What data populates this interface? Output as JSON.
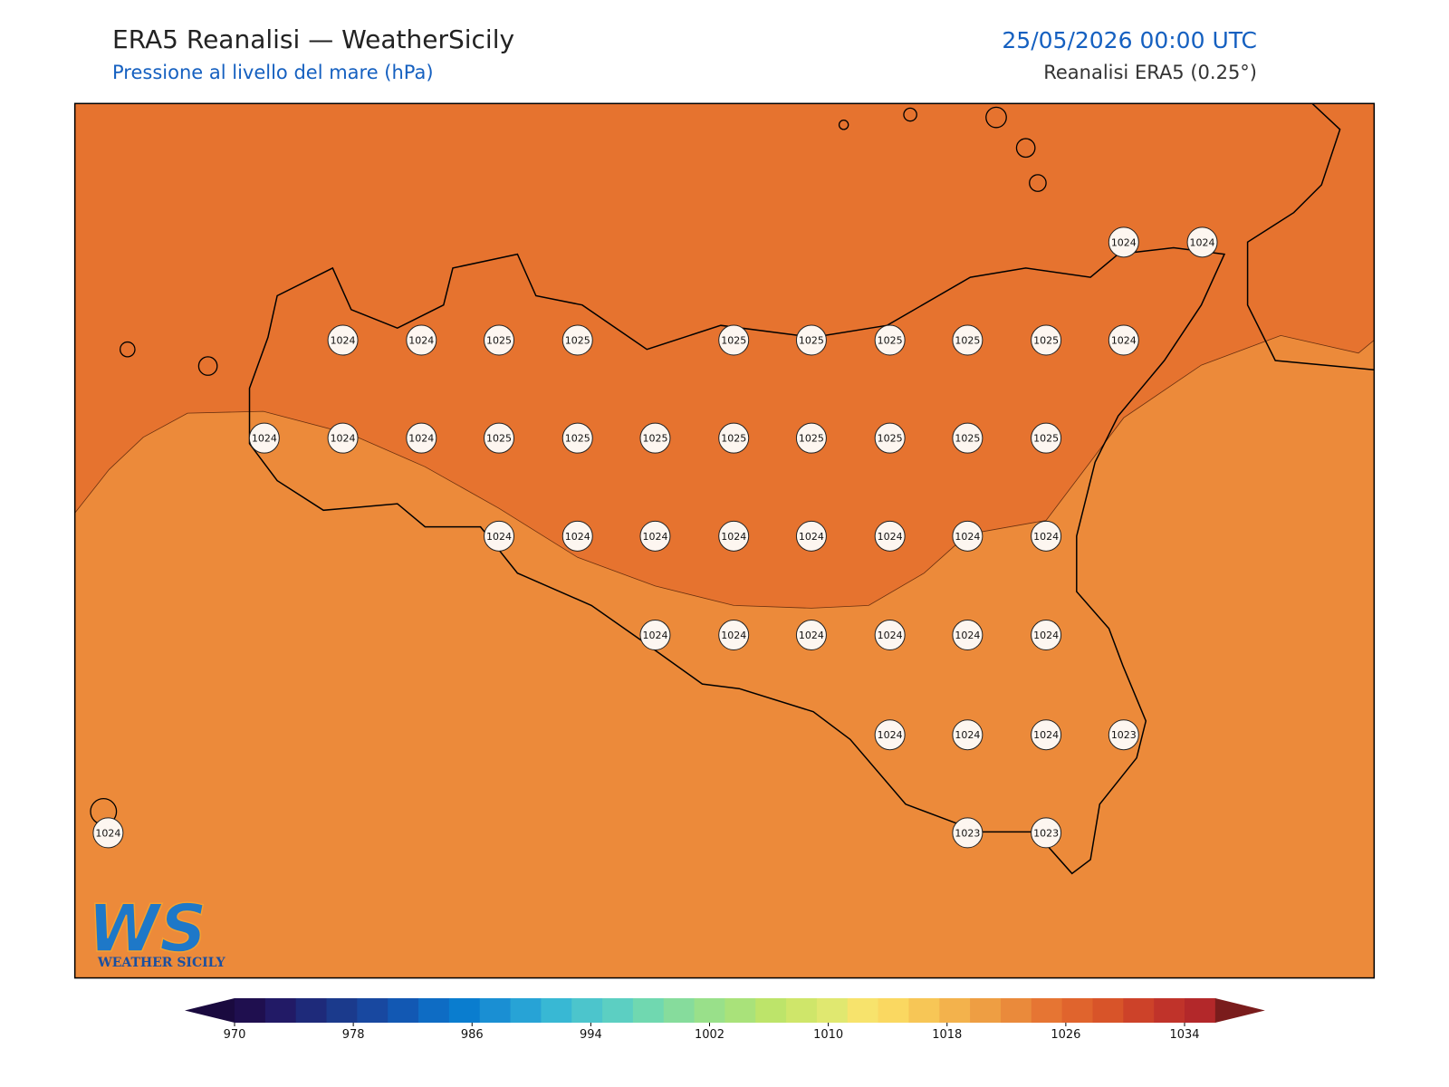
{
  "header": {
    "title": "ERA5 Reanalisi — WeatherSicily",
    "subtitle": "Pressione al livello del mare (hPa)",
    "date": "25/05/2026 00:00 UTC",
    "source": "Reanalisi ERA5 (0.25°)"
  },
  "map": {
    "stations": [
      1024,
      1024,
      1024,
      1024,
      1025,
      1025,
      1025,
      1025,
      1025,
      1025,
      1025,
      1024,
      1024,
      1024,
      1024,
      1025,
      1025,
      1025,
      1025,
      1025,
      1025,
      1025,
      1025,
      1024,
      1024,
      1024,
      1024,
      1024,
      1024,
      1024,
      1024,
      1024,
      1024,
      1024,
      1024,
      1024,
      1024,
      1024,
      1024,
      1024,
      1023,
      1024,
      1023,
      1023
    ]
  },
  "colorbar": {
    "ticks": [
      970,
      978,
      986,
      994,
      1002,
      1010,
      1018,
      1026,
      1034
    ],
    "colors": [
      "#1f0f4f",
      "#221a66",
      "#1e2a7a",
      "#1b3a8c",
      "#1848a0",
      "#1258b3",
      "#0e6cc4",
      "#0a7dcf",
      "#1a8fd3",
      "#27a3d6",
      "#38b8d4",
      "#4cc5cc",
      "#5ccfc2",
      "#70d8b0",
      "#86dc9c",
      "#99e08a",
      "#a9e27a",
      "#bde46a",
      "#cfe66a",
      "#e0e870",
      "#f7e36c",
      "#fad861",
      "#f7c656",
      "#f3b24c",
      "#ee9e43",
      "#ea8a3b",
      "#e67533",
      "#e0642d",
      "#d85429",
      "#cd4229",
      "#c0332a",
      "#b3282a"
    ],
    "under": "#1a0a3f",
    "over": "#7a1c1c"
  },
  "logo": {
    "mark": "WS",
    "text": "WEATHER SICILY"
  }
}
